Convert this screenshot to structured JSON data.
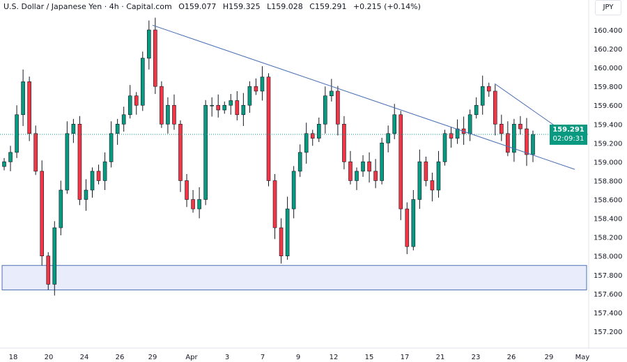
{
  "header": {
    "symbol": "U.S. Dollar / Japanese Yen · 4h · Capital.com",
    "open": "O159.077",
    "high": "H159.325",
    "low": "L159.028",
    "close": "C159.291",
    "change": "+0.215 (+0.14%)"
  },
  "currency": "JPY",
  "last_price": {
    "value": "159.291",
    "countdown": "02:09:31",
    "color": "#089981"
  },
  "colors": {
    "up": "#089981",
    "down": "#f23645",
    "trendline": "#4a6fb5",
    "zone_fill": "#e8ecfb",
    "zone_border": "#4a6fb5"
  },
  "chart_data": {
    "type": "candlestick",
    "price_ticks": [
      "160.400",
      "160.200",
      "160.000",
      "159.800",
      "159.600",
      "159.400",
      "159.200",
      "159.000",
      "158.800",
      "158.600",
      "158.400",
      "158.200",
      "158.000",
      "157.800",
      "157.600",
      "157.400",
      "157.200"
    ],
    "time_ticks": [
      "18",
      "20",
      "24",
      "26",
      "29",
      "Apr",
      "3",
      "7",
      "9",
      "12",
      "15",
      "17",
      "21",
      "23",
      "26",
      "29",
      "May"
    ],
    "ylim": [
      157.1,
      160.55
    ],
    "closes": [
      159.0,
      159.1,
      159.5,
      159.85,
      159.3,
      158.9,
      158.0,
      157.7,
      158.3,
      158.7,
      159.3,
      159.4,
      158.6,
      158.7,
      158.9,
      158.8,
      159.0,
      159.3,
      159.4,
      159.5,
      159.7,
      159.6,
      160.1,
      160.4,
      159.8,
      159.4,
      159.6,
      159.4,
      158.8,
      158.6,
      158.5,
      158.6,
      159.6,
      159.6,
      159.55,
      159.6,
      159.65,
      159.5,
      159.6,
      159.8,
      159.75,
      159.9,
      158.8,
      158.3,
      158.0,
      158.5,
      158.9,
      159.1,
      159.3,
      159.25,
      159.4,
      159.7,
      159.75,
      159.4,
      159.0,
      158.8,
      158.9,
      159.0,
      158.9,
      158.8,
      159.2,
      159.3,
      159.5,
      158.5,
      158.1,
      158.6,
      159.0,
      158.8,
      158.7,
      159.0,
      159.3,
      159.25,
      159.35,
      159.3,
      159.5,
      159.6,
      159.8,
      159.75,
      159.4,
      159.3,
      159.1,
      159.4,
      159.35,
      159.077,
      159.291
    ],
    "trendlines": [
      {
        "from": 160.45,
        "to": 158.92
      },
      {
        "from": 159.83,
        "to": 159.25
      }
    ],
    "support_zone": [
      157.64,
      157.9
    ]
  }
}
